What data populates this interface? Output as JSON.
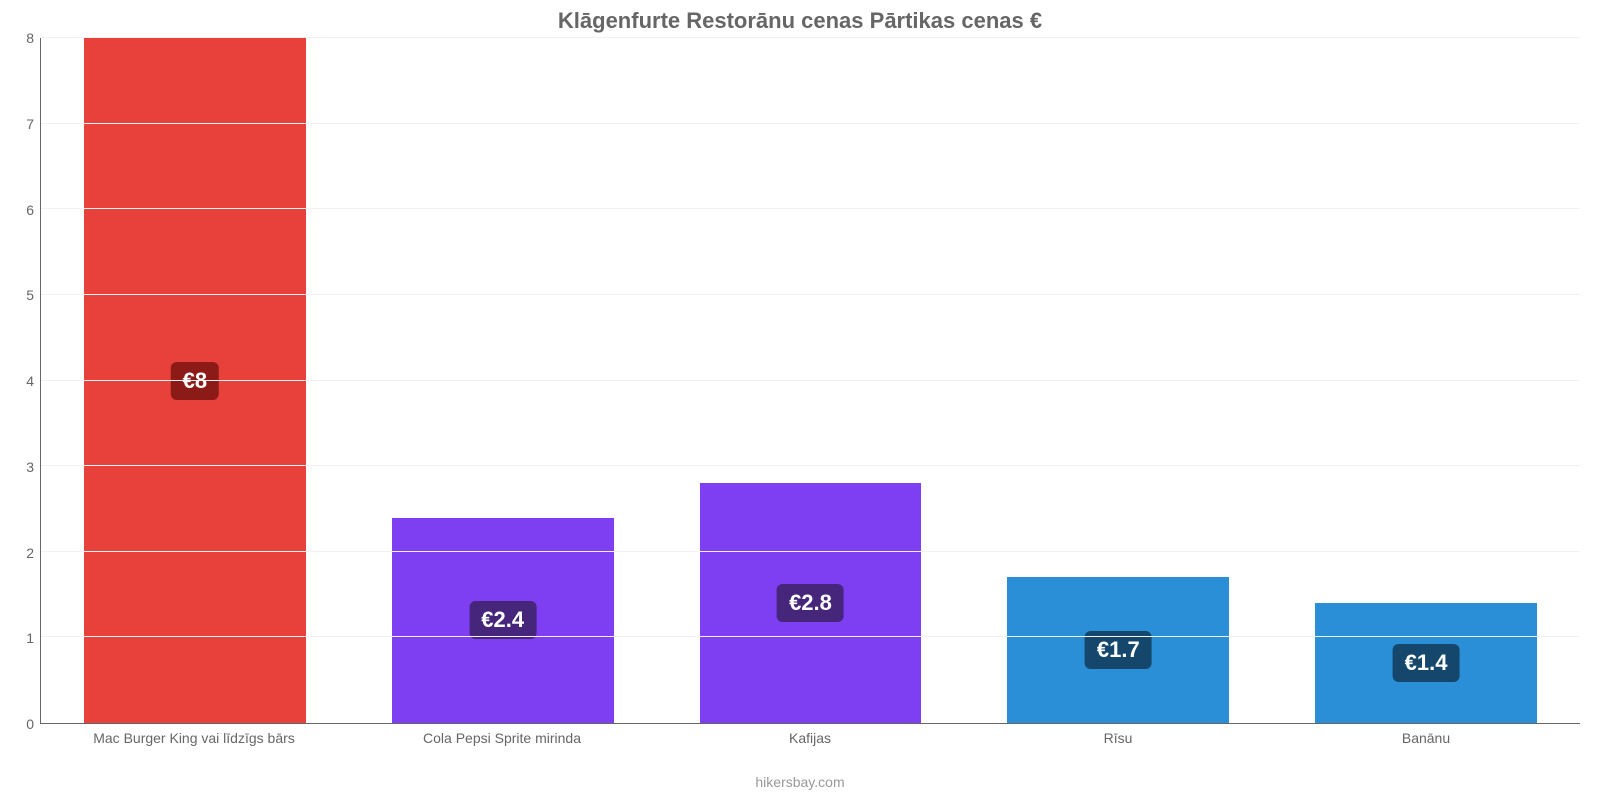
{
  "chart": {
    "type": "bar",
    "title": "Klāgenfurte Restorānu cenas Pārtikas cenas €",
    "title_fontsize": 22,
    "title_color": "#666666",
    "footer": "hikersbay.com",
    "footer_color": "#999999",
    "axis_color": "#666666",
    "grid_color": "#f2f2f2",
    "background_color": "#ffffff",
    "ylim": [
      0,
      8
    ],
    "ytick_step": 1,
    "yticks": [
      0,
      1,
      2,
      3,
      4,
      5,
      6,
      7,
      8
    ],
    "bar_width_pct": 72,
    "value_label_fontsize": 22,
    "x_label_fontsize": 14,
    "y_label_fontsize": 14,
    "categories": [
      "Mac Burger King vai līdzīgs bārs",
      "Cola Pepsi Sprite mirinda",
      "Kafijas",
      "Rīsu",
      "Banānu"
    ],
    "values": [
      8,
      2.4,
      2.8,
      1.7,
      1.4
    ],
    "value_labels": [
      "€8",
      "€2.4",
      "€2.8",
      "€1.7",
      "€1.4"
    ],
    "bar_colors": [
      "#e8403b",
      "#7e3ff2",
      "#7e3ff2",
      "#2a8fd6",
      "#2a8fd6"
    ],
    "badge_colors": [
      "#8c1b17",
      "#45267a",
      "#45267a",
      "#14476b",
      "#14476b"
    ]
  }
}
